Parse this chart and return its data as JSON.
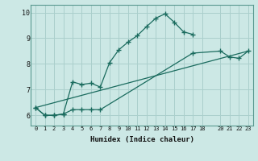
{
  "xlabel": "Humidex (Indice chaleur)",
  "bg_color": "#cce8e5",
  "grid_color": "#aacfcc",
  "line_color": "#1a6b5e",
  "xlim": [
    -0.5,
    23.5
  ],
  "ylim": [
    5.6,
    10.3
  ],
  "yticks": [
    6,
    7,
    8,
    9,
    10
  ],
  "xticks": [
    0,
    1,
    2,
    3,
    4,
    5,
    6,
    7,
    8,
    9,
    10,
    11,
    12,
    13,
    14,
    15,
    16,
    17,
    18,
    20,
    21,
    22,
    23
  ],
  "line1_x": [
    0,
    1,
    2,
    3,
    4,
    5,
    6,
    7,
    8,
    9,
    10,
    11,
    12,
    13,
    14,
    15,
    16,
    17
  ],
  "line1_y": [
    6.3,
    6.0,
    6.0,
    6.05,
    7.3,
    7.2,
    7.25,
    7.1,
    8.05,
    8.55,
    8.85,
    9.1,
    9.45,
    9.78,
    9.95,
    9.62,
    9.25,
    9.15
  ],
  "line2_x": [
    0,
    1,
    2,
    3,
    4,
    5,
    6,
    7,
    17,
    20,
    21,
    22,
    23
  ],
  "line2_y": [
    6.3,
    6.0,
    6.0,
    6.05,
    6.22,
    6.22,
    6.22,
    6.22,
    8.42,
    8.5,
    8.27,
    8.22,
    8.5
  ],
  "line3_x": [
    0,
    23
  ],
  "line3_y": [
    6.3,
    8.5
  ]
}
